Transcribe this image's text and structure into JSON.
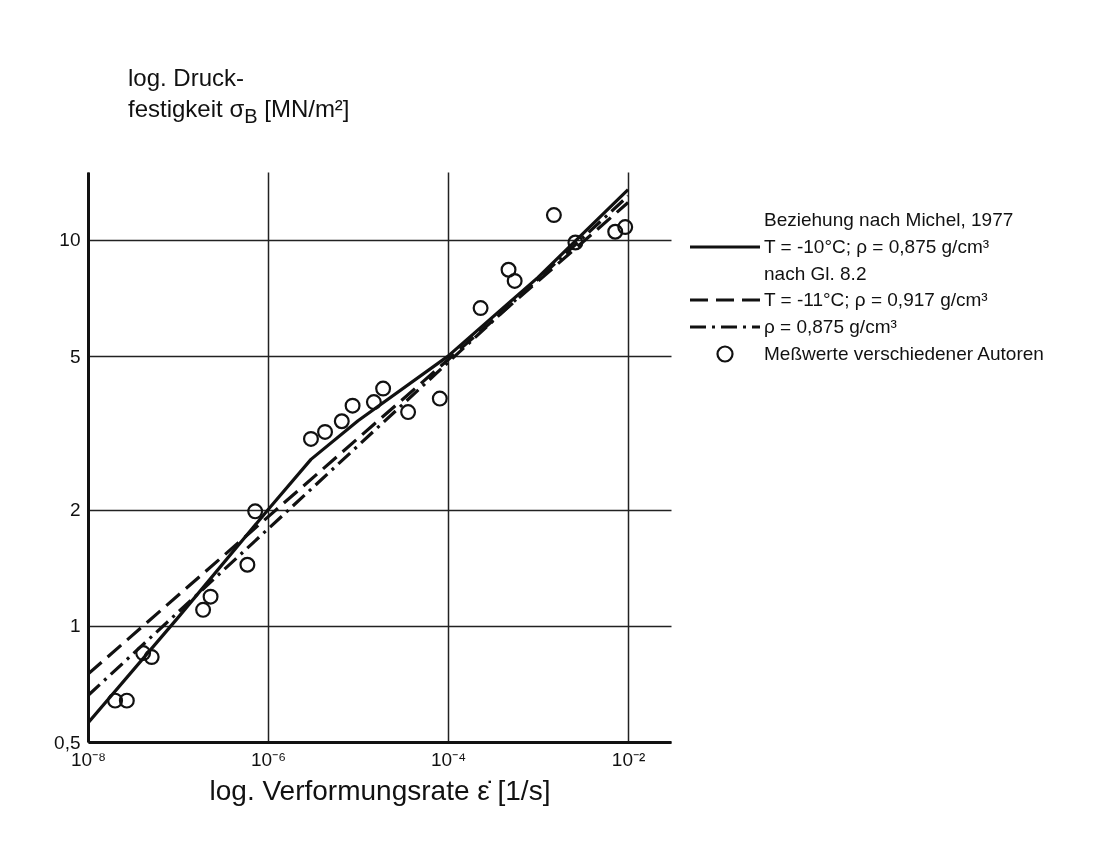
{
  "chart_data": {
    "type": "line",
    "xlabel": "log. Verformungsrate ε̇ [1/s]",
    "ylabel": "log. Druck-festigkeit σ$_{B}$ [MN/m²]",
    "legend_title": "Beziehung nach Michel, 1977",
    "annotations": [
      "nach Gl. 8.2"
    ],
    "log": "xy",
    "grid": true,
    "legend": "right",
    "xlim": [
      1e-08,
      0.03
    ],
    "ylim": [
      0.5,
      15
    ],
    "xticks": [
      {
        "value": 1e-08,
        "label": "10⁻⁸"
      },
      {
        "value": 1e-06,
        "label": "10⁻⁶"
      },
      {
        "value": 0.0001,
        "label": "10⁻⁴"
      },
      {
        "value": 0.01,
        "label": "10⁻²"
      }
    ],
    "yticks": [
      {
        "value": 0.5,
        "label": "0,5"
      },
      1,
      2,
      5,
      10
    ],
    "series": [
      {
        "name": "T = -10°C; ρ = 0,875 g/cm³",
        "line_style": "solid",
        "color": "#111111",
        "x": [
          1e-08,
          1e-07,
          1e-06,
          3e-06,
          1e-05,
          0.0001,
          0.001,
          0.01
        ],
        "values": [
          0.56,
          1.05,
          2.0,
          2.7,
          3.4,
          5.0,
          8.0,
          13.5
        ]
      },
      {
        "name": "T = -11°C; ρ = 0,917 g/cm³",
        "line_style": "dashed",
        "color": "#111111",
        "x": [
          1e-08,
          0.01
        ],
        "values": [
          0.75,
          12.5
        ]
      },
      {
        "name": "ρ = 0,875 g/cm³",
        "line_style": "dashdot",
        "color": "#111111",
        "x": [
          1e-08,
          0.01
        ],
        "values": [
          0.66,
          13
        ]
      },
      {
        "name": "Meßwerte verschiedener Autoren",
        "type": "scatter",
        "marker": "circle",
        "color": "#111111",
        "x": [
          2e-08,
          2.7e-08,
          4.1e-08,
          5.1e-08,
          1.9e-07,
          2.3e-07,
          5.9e-07,
          7.2e-07,
          3e-06,
          4.3e-06,
          6.6e-06,
          8.7e-06,
          1.5e-05,
          1.9e-05,
          3.6e-05,
          8.1e-05,
          0.00023,
          0.00047,
          0.00055,
          0.0015,
          0.0026,
          0.0072,
          0.0093
        ],
        "values": [
          0.64,
          0.64,
          0.85,
          0.83,
          1.1,
          1.19,
          1.44,
          1.98,
          3.05,
          3.18,
          3.39,
          3.72,
          3.8,
          4.12,
          3.58,
          3.88,
          6.66,
          8.37,
          7.83,
          11.6,
          9.85,
          10.5,
          10.8
        ]
      }
    ]
  }
}
